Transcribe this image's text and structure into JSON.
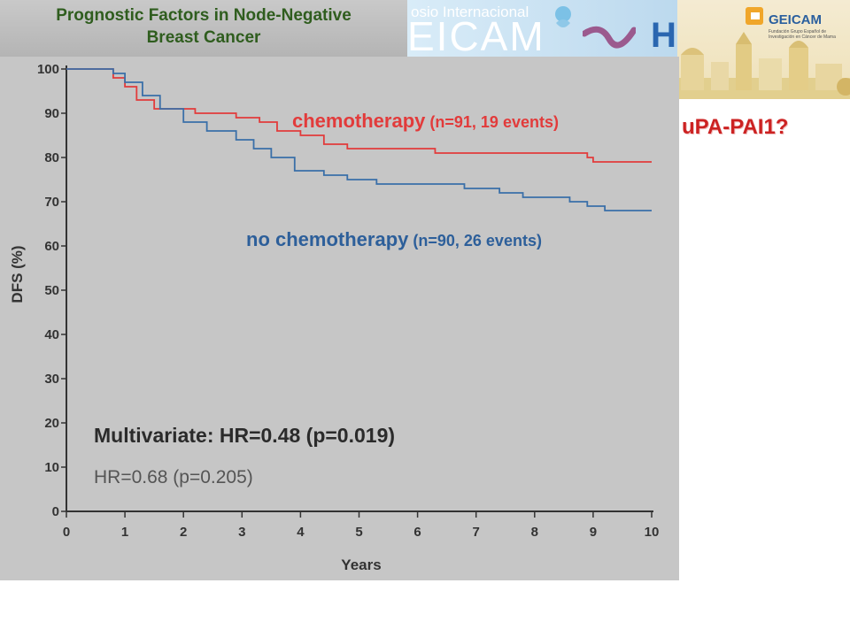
{
  "slide": {
    "title_line1": "Prognostic Factors in Node-Negative",
    "title_line2": "Breast Cancer",
    "question": "uPA-PAI1?"
  },
  "banner": {
    "text_small": "osio Internacional",
    "text_large": "EICAM",
    "logo_letter": "H",
    "logo_icons": [
      "drop-icon",
      "ribbon-icon"
    ]
  },
  "sponsor": {
    "name": "GEICAM",
    "prefix": "FUNDACIÓN",
    "caption": "Fundación Grupo Español de Investigación en Cáncer de Mama"
  },
  "chart_data": {
    "type": "line",
    "xlabel": "Years",
    "ylabel": "DFS (%)",
    "xlim": [
      0,
      10
    ],
    "ylim": [
      0,
      100
    ],
    "x_ticks": [
      "0",
      "1",
      "2",
      "3",
      "4",
      "5",
      "6",
      "7",
      "8",
      "9",
      "10"
    ],
    "y_ticks": [
      "0",
      "10",
      "20",
      "30",
      "40",
      "50",
      "60",
      "70",
      "80",
      "90",
      "100"
    ],
    "grid": false,
    "series": [
      {
        "name": "chemotherapy",
        "label_main": "chemotherapy",
        "label_detail": "(n=91, 19 events)",
        "color": "#e23b3b",
        "points": [
          [
            0,
            100
          ],
          [
            0.6,
            100
          ],
          [
            0.8,
            98
          ],
          [
            1.0,
            96
          ],
          [
            1.2,
            93
          ],
          [
            1.5,
            91
          ],
          [
            1.8,
            91
          ],
          [
            2.2,
            90
          ],
          [
            2.9,
            89
          ],
          [
            3.3,
            88
          ],
          [
            3.6,
            86
          ],
          [
            4.0,
            85
          ],
          [
            4.4,
            83
          ],
          [
            4.8,
            82
          ],
          [
            6.0,
            82
          ],
          [
            6.3,
            81
          ],
          [
            8.0,
            81
          ],
          [
            8.9,
            80
          ],
          [
            9.0,
            79
          ],
          [
            10.0,
            79
          ]
        ]
      },
      {
        "name": "no chemotherapy",
        "label_main": "no chemotherapy",
        "label_detail": "(n=90, 26 events)",
        "color": "#3a6fa8",
        "points": [
          [
            0,
            100
          ],
          [
            0.8,
            99
          ],
          [
            1.0,
            97
          ],
          [
            1.3,
            94
          ],
          [
            1.6,
            91
          ],
          [
            2.0,
            88
          ],
          [
            2.4,
            86
          ],
          [
            2.9,
            84
          ],
          [
            3.2,
            82
          ],
          [
            3.5,
            80
          ],
          [
            3.9,
            77
          ],
          [
            4.4,
            76
          ],
          [
            4.8,
            75
          ],
          [
            5.3,
            74
          ],
          [
            6.8,
            73
          ],
          [
            7.4,
            72
          ],
          [
            7.8,
            71
          ],
          [
            8.6,
            70
          ],
          [
            8.9,
            69
          ],
          [
            9.2,
            68
          ],
          [
            10.0,
            68
          ]
        ]
      }
    ],
    "annotations": {
      "multivariate": "Multivariate: HR=0.48 (p=0.019)",
      "univariate": "HR=0.68 (p=0.205)"
    }
  }
}
